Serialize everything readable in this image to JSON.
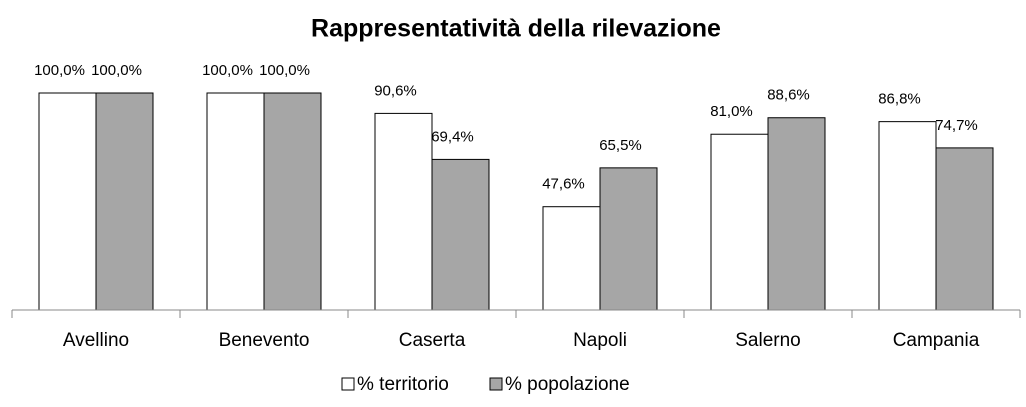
{
  "chart_data": {
    "type": "bar",
    "title": "Rappresentatività della rilevazione",
    "categories": [
      "Avellino",
      "Benevento",
      "Caserta",
      "Napoli",
      "Salerno",
      "Campania"
    ],
    "series": [
      {
        "name": "% territorio",
        "color": "#ffffff",
        "values": [
          100.0,
          100.0,
          90.6,
          47.6,
          81.0,
          86.8
        ],
        "value_labels": [
          "100,0%",
          "100,0%",
          "90,6%",
          "47,6%",
          "81,0%",
          "86,8%"
        ]
      },
      {
        "name": "% popolazione",
        "color": "#a6a6a6",
        "values": [
          100.0,
          100.0,
          69.4,
          65.5,
          88.6,
          74.7
        ],
        "value_labels": [
          "100,0%",
          "100,0%",
          "69,4%",
          "65,5%",
          "88,6%",
          "74,7%"
        ]
      }
    ],
    "ylim": [
      0,
      100
    ],
    "legend": "bottom"
  }
}
